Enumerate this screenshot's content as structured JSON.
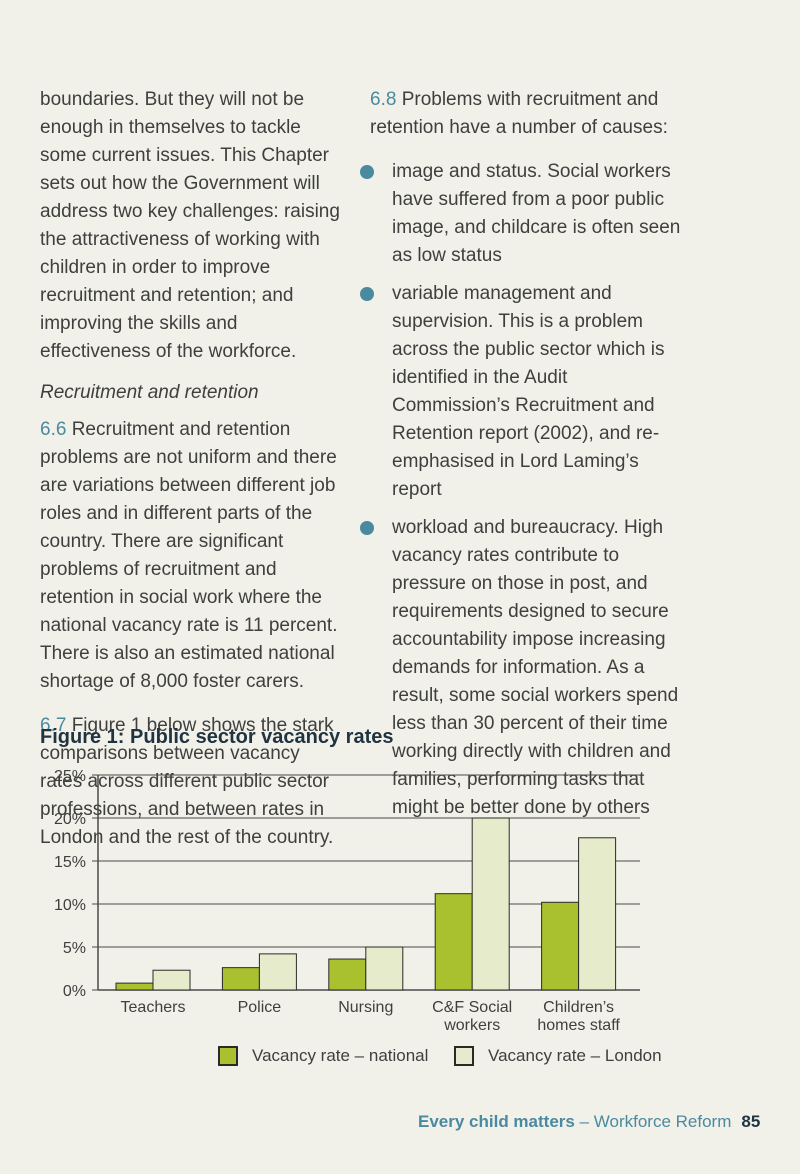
{
  "left_column": {
    "intro": "boundaries. But they will not be enough in themselves to tackle some current issues. This Chapter sets out how the Government will address two key challenges: raising the attractiveness of working with children in order to improve recruitment and retention; and improving the skills and effectiveness of the workforce.",
    "subheading": "Recruitment and retention",
    "p66_num": "6.6",
    "p66_text": "Recruitment and retention problems are not uniform and there are variations between different job roles and in different parts of the country. There are significant problems of recruitment and retention in social work where the national vacancy rate is 11 percent. There is also an estimated national shortage of 8,000 foster carers.",
    "p67_num": "6.7",
    "p67_text": "Figure 1 below shows the stark comparisons between vacancy rates across different public sector professions, and between rates in London and the rest of the country."
  },
  "right_column": {
    "p68_num": "6.8",
    "p68_text": "Problems with recruitment and retention have a number of causes:",
    "bullets": [
      "image and status. Social workers have suffered from a poor public image, and childcare is often seen as low status",
      "variable management and supervision. This is a problem across the public sector which is identified in the Audit Commission’s Recruitment and Retention report (2002), and re-emphasised in Lord Laming’s report",
      "workload and bureaucracy. High vacancy rates contribute to pressure on those in post, and requirements designed to secure accountability impose increasing demands for information. As a result, some social workers spend less than 30 percent of their time working directly with children and families, performing tasks that might be better done by others"
    ]
  },
  "figure_title": "Figure 1: Public sector vacancy rates",
  "chart_data": {
    "type": "bar",
    "categories": [
      "Teachers",
      "Police",
      "Nursing",
      "C&F Social workers",
      "Children’s homes staff"
    ],
    "category_labels": [
      [
        "Teachers"
      ],
      [
        "Police"
      ],
      [
        "Nursing"
      ],
      [
        "C&F Social",
        "workers"
      ],
      [
        "Children’s",
        "homes staff"
      ]
    ],
    "series": [
      {
        "name": "Vacancy rate – national",
        "values": [
          0.8,
          2.6,
          3.6,
          11.2,
          10.2
        ],
        "color": "#a9c02f"
      },
      {
        "name": "Vacancy rate – London",
        "values": [
          2.3,
          4.2,
          5.0,
          20.0,
          17.7
        ],
        "color": "#e6eccb"
      }
    ],
    "ylim": [
      0,
      25
    ],
    "yticks": [
      "0%",
      "5%",
      "10%",
      "15%",
      "20%",
      "25%"
    ],
    "grid": true,
    "legend_position": "bottom"
  },
  "legend": {
    "national_label": "Vacancy rate – national",
    "london_label": "Vacancy rate – London"
  },
  "footer": {
    "strong": "Every child matters",
    "rest": " – Workforce Reform",
    "page": "85"
  }
}
